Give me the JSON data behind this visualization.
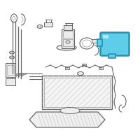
{
  "bg_color": "#ffffff",
  "highlight_color": "#5ecde8",
  "highlight_edge": "#2a8fb0",
  "line_color": "#999999",
  "dark_line": "#666666",
  "fig_size": [
    2.0,
    2.0
  ],
  "dpi": 100
}
